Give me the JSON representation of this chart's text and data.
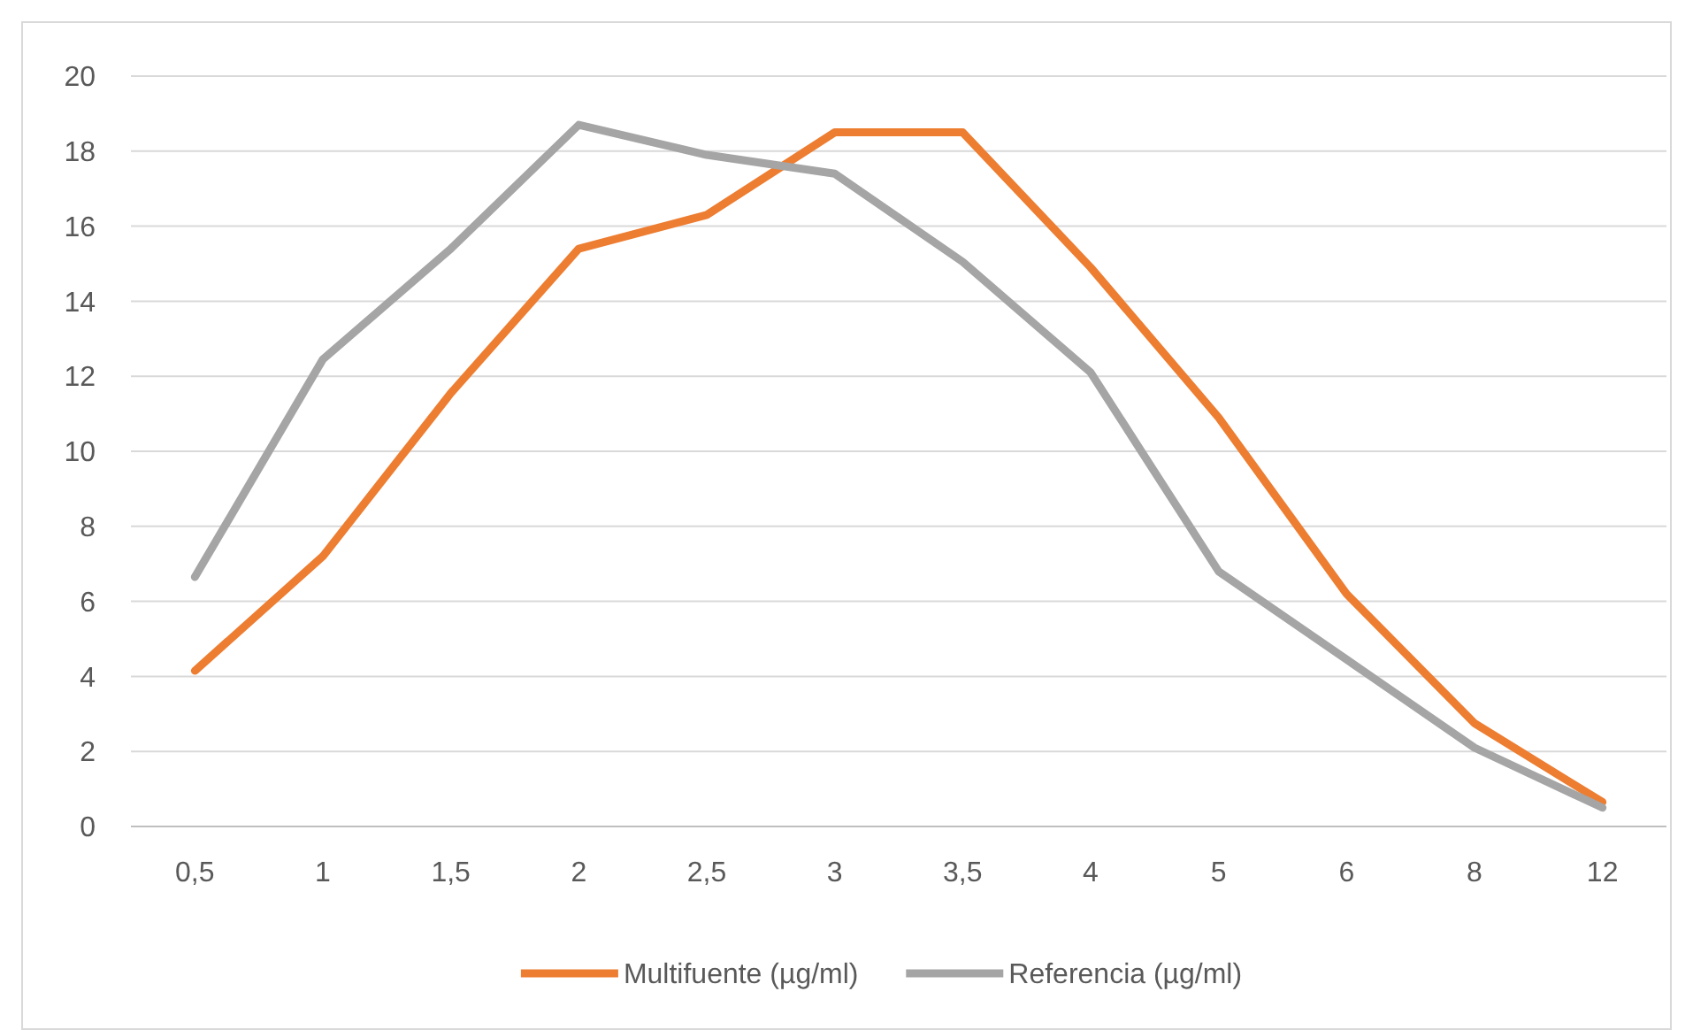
{
  "chart_data": {
    "type": "line",
    "categories": [
      "0,5",
      "1",
      "1,5",
      "2",
      "2,5",
      "3",
      "3,5",
      "4",
      "5",
      "6",
      "8",
      "12"
    ],
    "series": [
      {
        "name": "Multifuente (µg/ml)",
        "color": "#ed7d31",
        "values": [
          4.15,
          7.2,
          11.55,
          15.4,
          16.3,
          18.5,
          18.5,
          14.9,
          10.9,
          6.2,
          2.75,
          0.65
        ]
      },
      {
        "name": "Referencia (µg/ml)",
        "color": "#a5a5a5",
        "values": [
          6.65,
          12.45,
          15.4,
          18.7,
          17.9,
          17.4,
          15.05,
          12.1,
          6.8,
          4.45,
          2.1,
          0.5
        ]
      }
    ],
    "ylim": [
      0,
      20
    ],
    "yticks": [
      0,
      2,
      4,
      6,
      8,
      10,
      12,
      14,
      16,
      18,
      20
    ],
    "grid": "y",
    "legend": "bottom",
    "marker": "none",
    "line_style": "solid"
  }
}
